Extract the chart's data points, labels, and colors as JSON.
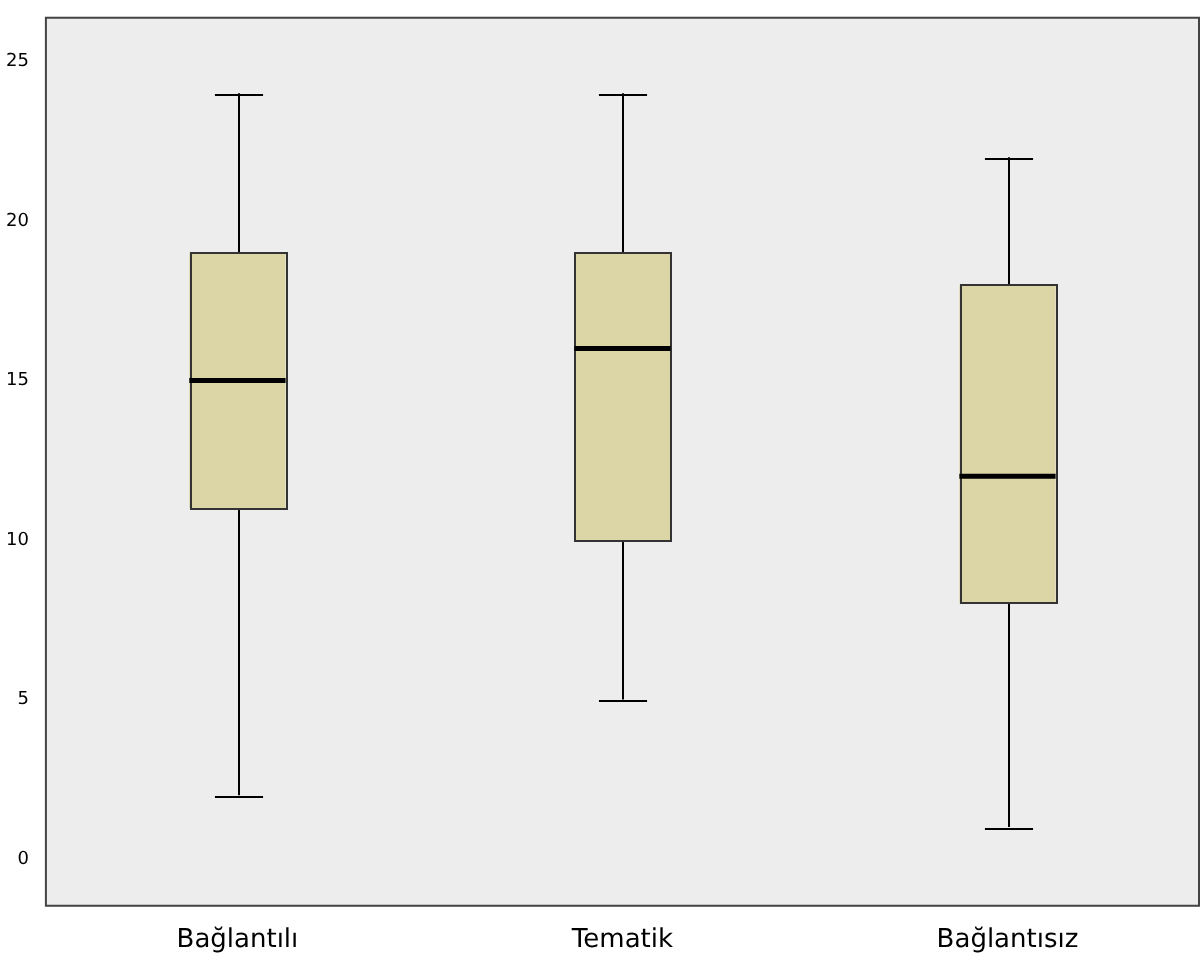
{
  "chart_data": {
    "type": "box",
    "categories": [
      "Bağlantılı",
      "Tematik",
      "Bağlantısız"
    ],
    "color": "#dcd5a5",
    "boxes": [
      {
        "low": 2,
        "q1": 11,
        "median": 15,
        "q3": 19,
        "high": 24
      },
      {
        "low": 5,
        "q1": 10,
        "median": 16,
        "q3": 19,
        "high": 24
      },
      {
        "low": 1,
        "q1": 8,
        "median": 12,
        "q3": 18,
        "high": 22
      }
    ],
    "ylim": [
      -1.5,
      26.4
    ],
    "yticks": [
      0,
      5,
      10,
      15,
      20,
      25
    ]
  }
}
